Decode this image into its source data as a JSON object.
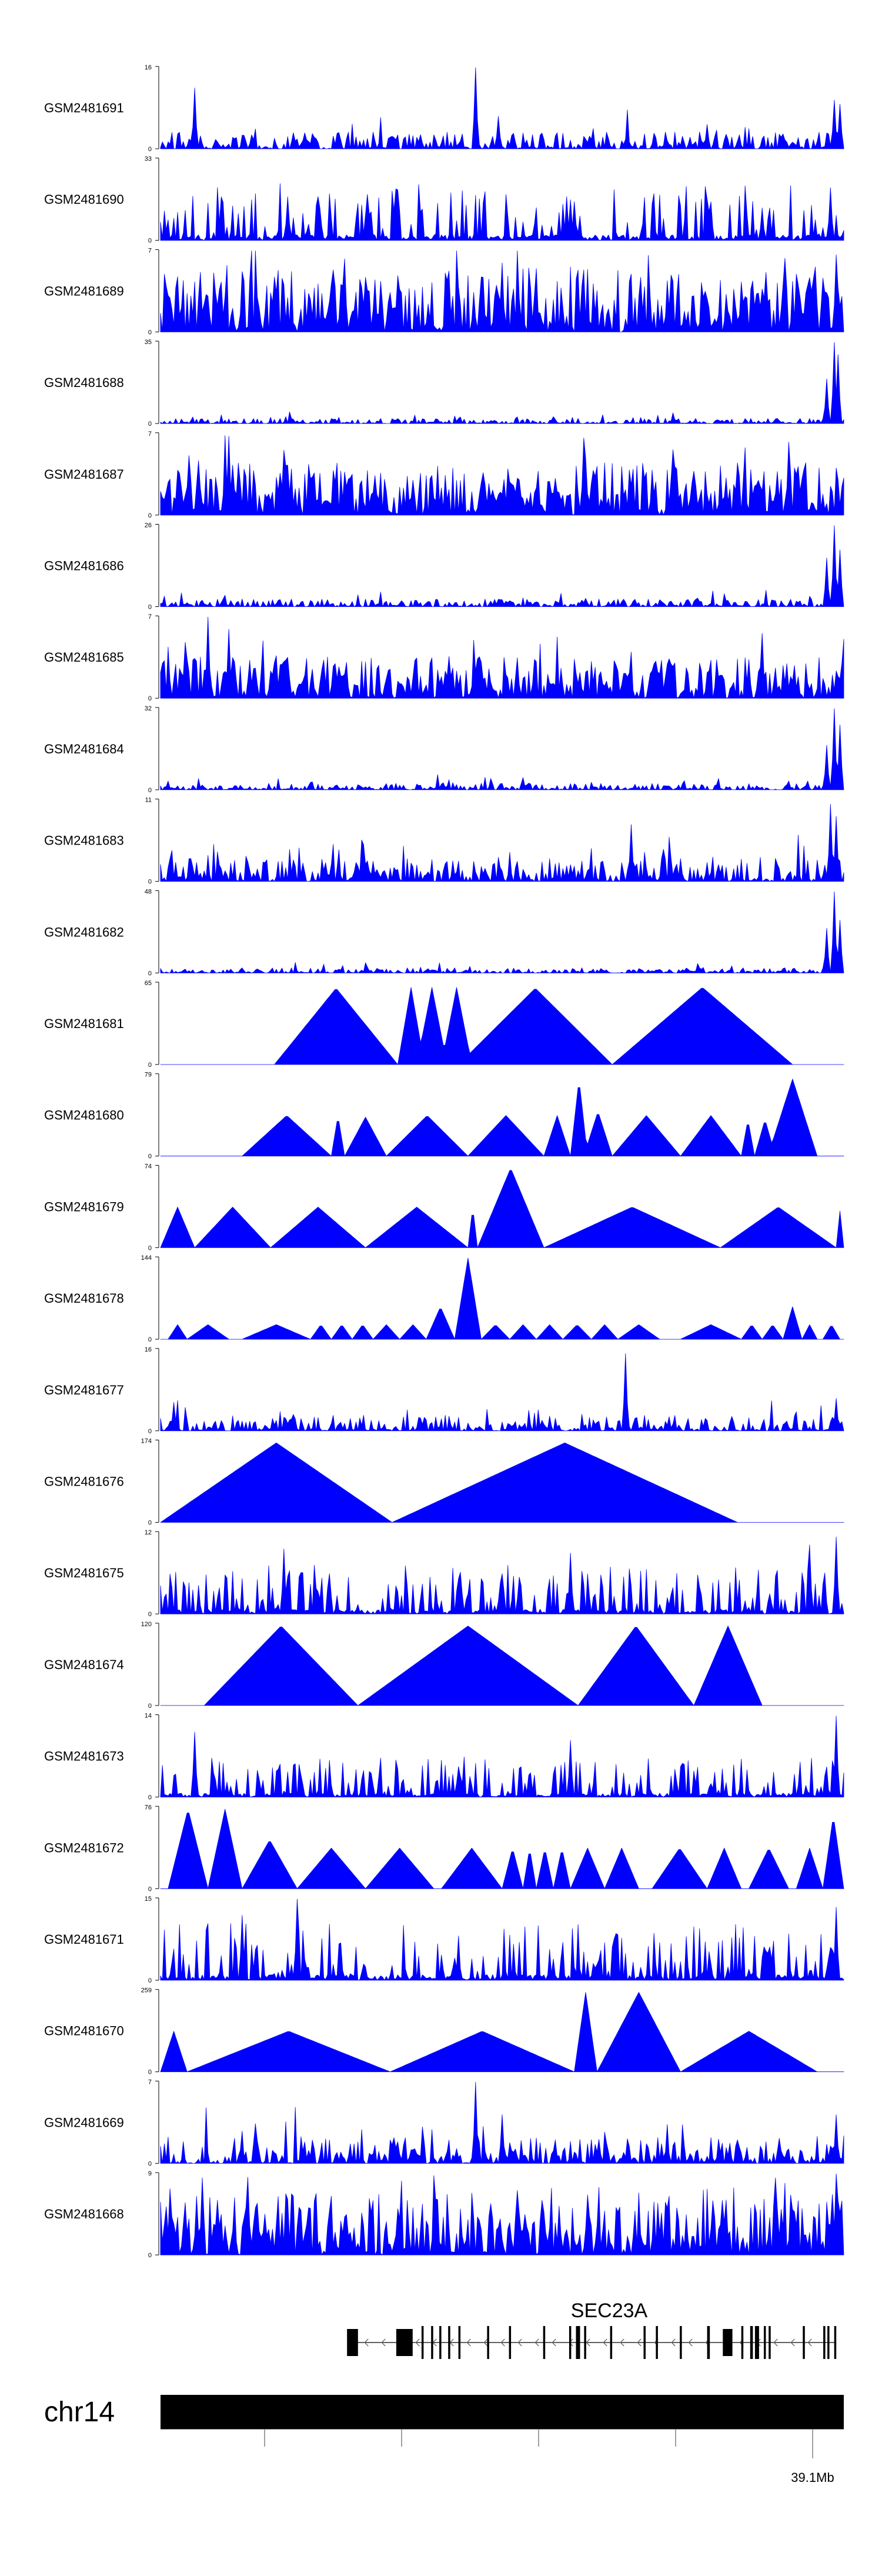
{
  "chart_data": {
    "type": "area",
    "title": "",
    "color": "#0000ff",
    "tracks": [
      {
        "name": "GSM2481691",
        "ymax": 16,
        "pattern": "noise",
        "base": 0.13,
        "spikes": [
          [
            0.05,
            0.75
          ],
          [
            0.46,
            1.0
          ],
          [
            0.495,
            0.4
          ],
          [
            0.8,
            0.3
          ],
          [
            0.985,
            0.6
          ],
          [
            0.995,
            0.55
          ]
        ]
      },
      {
        "name": "GSM2481690",
        "ymax": 33,
        "pattern": "sparse",
        "base": 0.35,
        "spikes": [
          [
            0.98,
            0.65
          ],
          [
            0.88,
            0.4
          ],
          [
            0.6,
            0.5
          ]
        ]
      },
      {
        "name": "GSM2481689",
        "ymax": 7,
        "pattern": "dense",
        "base": 0.45,
        "spikes": [
          [
            0.27,
            0.9
          ],
          [
            0.5,
            0.85
          ],
          [
            0.99,
            0.95
          ]
        ]
      },
      {
        "name": "GSM2481688",
        "ymax": 35,
        "pattern": "noise",
        "base": 0.04,
        "spikes": [
          [
            0.975,
            0.55
          ],
          [
            0.985,
            1.0
          ],
          [
            0.993,
            0.85
          ]
        ]
      },
      {
        "name": "GSM2481687",
        "ymax": 7,
        "pattern": "dense",
        "base": 0.38,
        "spikes": [
          [
            0.62,
            0.95
          ],
          [
            0.92,
            0.9
          ],
          [
            0.18,
            0.8
          ]
        ]
      },
      {
        "name": "GSM2481686",
        "ymax": 26,
        "pattern": "noise",
        "base": 0.06,
        "spikes": [
          [
            0.975,
            0.6
          ],
          [
            0.985,
            1.0
          ],
          [
            0.995,
            0.7
          ]
        ]
      },
      {
        "name": "GSM2481685",
        "ymax": 7,
        "pattern": "dense",
        "base": 0.3,
        "spikes": [
          [
            0.07,
            1.0
          ],
          [
            0.1,
            0.85
          ],
          [
            0.88,
            0.8
          ]
        ]
      },
      {
        "name": "GSM2481684",
        "ymax": 32,
        "pattern": "noise",
        "base": 0.05,
        "spikes": [
          [
            0.975,
            0.55
          ],
          [
            0.985,
            1.0
          ],
          [
            0.995,
            0.8
          ]
        ]
      },
      {
        "name": "GSM2481683",
        "ymax": 11,
        "pattern": "noise",
        "base": 0.18,
        "spikes": [
          [
            0.69,
            0.7
          ],
          [
            0.98,
            0.95
          ],
          [
            0.99,
            0.8
          ]
        ]
      },
      {
        "name": "GSM2481682",
        "ymax": 48,
        "pattern": "noise",
        "base": 0.04,
        "spikes": [
          [
            0.975,
            0.55
          ],
          [
            0.985,
            1.0
          ],
          [
            0.995,
            0.65
          ]
        ]
      },
      {
        "name": "GSM2481681",
        "ymax": 65,
        "pattern": "peaks",
        "peaks": [
          [
            0.167,
            0.348,
            0.94
          ],
          [
            0.348,
            0.385,
            0.95
          ],
          [
            0.375,
            0.42,
            0.95
          ],
          [
            0.41,
            0.455,
            0.95
          ],
          [
            0.435,
            0.66,
            0.94
          ],
          [
            0.66,
            0.925,
            0.95
          ]
        ]
      },
      {
        "name": "GSM2481680",
        "ymax": 79,
        "pattern": "peaks",
        "peaks": [
          [
            0.12,
            0.25,
            0.5
          ],
          [
            0.25,
            0.27,
            0.5
          ],
          [
            0.27,
            0.33,
            0.48
          ],
          [
            0.33,
            0.45,
            0.5
          ],
          [
            0.45,
            0.56,
            0.5
          ],
          [
            0.56,
            0.6,
            0.5
          ],
          [
            0.6,
            0.625,
            0.95
          ],
          [
            0.62,
            0.66,
            0.55
          ],
          [
            0.66,
            0.76,
            0.5
          ],
          [
            0.76,
            0.85,
            0.5
          ],
          [
            0.85,
            0.87,
            0.45
          ],
          [
            0.87,
            0.9,
            0.45
          ],
          [
            0.89,
            0.96,
            0.95
          ]
        ]
      },
      {
        "name": "GSM2481679",
        "ymax": 74,
        "pattern": "peaks",
        "peaks": [
          [
            0.0,
            0.05,
            0.5
          ],
          [
            0.05,
            0.16,
            0.5
          ],
          [
            0.16,
            0.3,
            0.5
          ],
          [
            0.3,
            0.45,
            0.5
          ],
          [
            0.45,
            0.465,
            0.5
          ],
          [
            0.465,
            0.56,
            0.98
          ],
          [
            0.56,
            0.82,
            0.5
          ],
          [
            0.82,
            0.99,
            0.5
          ],
          [
            0.99,
            1.0,
            0.45
          ]
        ]
      },
      {
        "name": "GSM2481678",
        "ymax": 144,
        "pattern": "peaks",
        "peaks": [
          [
            0.01,
            0.04,
            0.18
          ],
          [
            0.04,
            0.1,
            0.18
          ],
          [
            0.12,
            0.22,
            0.18
          ],
          [
            0.22,
            0.25,
            0.18
          ],
          [
            0.25,
            0.28,
            0.18
          ],
          [
            0.28,
            0.31,
            0.18
          ],
          [
            0.31,
            0.35,
            0.18
          ],
          [
            0.35,
            0.39,
            0.18
          ],
          [
            0.39,
            0.43,
            0.4
          ],
          [
            0.43,
            0.47,
            1.0
          ],
          [
            0.47,
            0.51,
            0.18
          ],
          [
            0.51,
            0.55,
            0.18
          ],
          [
            0.55,
            0.59,
            0.18
          ],
          [
            0.59,
            0.63,
            0.18
          ],
          [
            0.63,
            0.67,
            0.18
          ],
          [
            0.67,
            0.73,
            0.18
          ],
          [
            0.76,
            0.85,
            0.18
          ],
          [
            0.85,
            0.88,
            0.18
          ],
          [
            0.88,
            0.91,
            0.18
          ],
          [
            0.91,
            0.94,
            0.4
          ],
          [
            0.94,
            0.96,
            0.18
          ],
          [
            0.97,
            0.995,
            0.18
          ]
        ]
      },
      {
        "name": "GSM2481677",
        "ymax": 16,
        "pattern": "noise",
        "base": 0.12,
        "spikes": [
          [
            0.68,
            0.95
          ],
          [
            0.02,
            0.35
          ],
          [
            0.99,
            0.4
          ]
        ]
      },
      {
        "name": "GSM2481676",
        "ymax": 174,
        "pattern": "peaks",
        "peaks": [
          [
            0.0,
            0.34,
            0.98
          ],
          [
            0.34,
            0.845,
            0.98
          ]
        ]
      },
      {
        "name": "GSM2481675",
        "ymax": 12,
        "pattern": "sparse",
        "base": 0.3,
        "spikes": [
          [
            0.18,
            0.8
          ],
          [
            0.99,
            0.95
          ],
          [
            0.95,
            0.85
          ],
          [
            0.6,
            0.75
          ]
        ]
      },
      {
        "name": "GSM2481674",
        "ymax": 120,
        "pattern": "peaks",
        "peaks": [
          [
            0.065,
            0.29,
            0.98
          ],
          [
            0.29,
            0.61,
            0.98
          ],
          [
            0.61,
            0.78,
            0.98
          ],
          [
            0.78,
            0.88,
            0.98
          ]
        ]
      },
      {
        "name": "GSM2481673",
        "ymax": 14,
        "pattern": "sparse",
        "base": 0.25,
        "spikes": [
          [
            0.05,
            0.8
          ],
          [
            0.6,
            0.7
          ],
          [
            0.99,
            1.0
          ]
        ]
      },
      {
        "name": "GSM2481672",
        "ymax": 76,
        "pattern": "peaks",
        "peaks": [
          [
            0.01,
            0.07,
            0.98
          ],
          [
            0.07,
            0.12,
            0.98
          ],
          [
            0.12,
            0.2,
            0.6
          ],
          [
            0.2,
            0.3,
            0.5
          ],
          [
            0.3,
            0.4,
            0.5
          ],
          [
            0.41,
            0.5,
            0.5
          ],
          [
            0.5,
            0.53,
            0.5
          ],
          [
            0.53,
            0.55,
            0.5
          ],
          [
            0.55,
            0.575,
            0.5
          ],
          [
            0.575,
            0.6,
            0.5
          ],
          [
            0.6,
            0.65,
            0.5
          ],
          [
            0.65,
            0.7,
            0.5
          ],
          [
            0.72,
            0.8,
            0.5
          ],
          [
            0.8,
            0.85,
            0.5
          ],
          [
            0.86,
            0.92,
            0.5
          ],
          [
            0.93,
            0.97,
            0.5
          ],
          [
            0.97,
            1.0,
            0.9
          ]
        ]
      },
      {
        "name": "GSM2481671",
        "ymax": 15,
        "pattern": "sparse",
        "base": 0.35,
        "spikes": [
          [
            0.2,
            1.0
          ],
          [
            0.12,
            0.8
          ],
          [
            0.99,
            0.9
          ]
        ]
      },
      {
        "name": "GSM2481670",
        "ymax": 259,
        "pattern": "peaks",
        "peaks": [
          [
            0.0,
            0.04,
            0.5
          ],
          [
            0.04,
            0.335,
            0.5
          ],
          [
            0.335,
            0.605,
            0.5
          ],
          [
            0.605,
            0.64,
            0.98
          ],
          [
            0.64,
            0.76,
            0.98
          ],
          [
            0.76,
            0.96,
            0.5
          ]
        ]
      },
      {
        "name": "GSM2481669",
        "ymax": 7,
        "pattern": "noise",
        "base": 0.2,
        "spikes": [
          [
            0.46,
            1.0
          ],
          [
            0.5,
            0.6
          ],
          [
            0.99,
            0.6
          ]
        ]
      },
      {
        "name": "GSM2481668",
        "ymax": 9,
        "pattern": "dense",
        "base": 0.45,
        "spikes": [
          [
            0.06,
            0.95
          ],
          [
            0.9,
            0.95
          ],
          [
            0.99,
            1.0
          ]
        ]
      }
    ],
    "gene": {
      "name": "SEC23A",
      "strand": "-",
      "exons": [
        [
          0.273,
          0.016
        ],
        [
          0.345,
          0.024
        ],
        [
          0.382,
          0.003
        ],
        [
          0.396,
          0.003
        ],
        [
          0.408,
          0.003
        ],
        [
          0.421,
          0.003
        ],
        [
          0.436,
          0.003
        ],
        [
          0.478,
          0.003
        ],
        [
          0.51,
          0.003
        ],
        [
          0.56,
          0.003
        ],
        [
          0.598,
          0.003
        ],
        [
          0.608,
          0.006
        ],
        [
          0.62,
          0.003
        ],
        [
          0.658,
          0.003
        ],
        [
          0.707,
          0.003
        ],
        [
          0.725,
          0.003
        ],
        [
          0.76,
          0.003
        ],
        [
          0.8,
          0.004
        ],
        [
          0.823,
          0.014
        ],
        [
          0.85,
          0.003
        ],
        [
          0.863,
          0.004
        ],
        [
          0.87,
          0.006
        ],
        [
          0.883,
          0.003
        ],
        [
          0.89,
          0.003
        ],
        [
          0.94,
          0.003
        ],
        [
          0.97,
          0.003
        ],
        [
          0.976,
          0.003
        ],
        [
          0.986,
          0.003
        ]
      ]
    },
    "chromosome": {
      "name": "chr14",
      "tick_count": 5,
      "tick_label": "39.1Mb",
      "labeled_tick_index": 4
    }
  }
}
